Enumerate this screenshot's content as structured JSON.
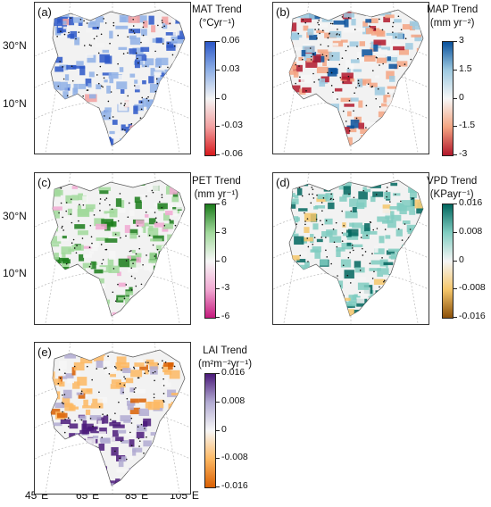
{
  "panels": [
    {
      "label": "(a)",
      "title_line1": "MAT Trend",
      "title_line2": "(°Cyr⁻¹)",
      "ticks": [
        "0.06",
        "0.03",
        "0",
        "-0.03",
        "-0.06"
      ],
      "colors": [
        "#2b57c8",
        "#8fb0e6",
        "#f4f4f4",
        "#f2a0a0",
        "#d7191c"
      ]
    },
    {
      "label": "(b)",
      "title_line1": "MAP Trend",
      "title_line2": "(mm yr⁻²)",
      "ticks": [
        "3",
        "1.5",
        "0",
        "-1.5",
        "-3"
      ],
      "colors": [
        "#08519c",
        "#9ecae1",
        "#f7f7f7",
        "#f4a582",
        "#b2182b"
      ]
    },
    {
      "label": "(c)",
      "title_line1": "PET Trend",
      "title_line2": "(mm yr⁻¹)",
      "ticks": [
        "6",
        "3",
        "0",
        "-3",
        "-6"
      ],
      "colors": [
        "#1b7c1b",
        "#a1d99b",
        "#f7f7f7",
        "#f1a9d2",
        "#c51b7d"
      ]
    },
    {
      "label": "(d)",
      "title_line1": "VPD Trend",
      "title_line2": "(KPayr⁻¹)",
      "ticks": [
        "0.016",
        "0.008",
        "0",
        "-0.008",
        "-0.016"
      ],
      "colors": [
        "#01665e",
        "#80cdc1",
        "#f5f5f5",
        "#f6c76b",
        "#8c510a"
      ]
    },
    {
      "label": "(e)",
      "title_line1": "LAI Trend",
      "title_line2": "(m²m⁻²yr⁻¹)",
      "ticks": [
        "0.016",
        "0.008",
        "0",
        "-0.008",
        "-0.016"
      ],
      "colors": [
        "#4b1a7a",
        "#b2abd2",
        "#f7f7f7",
        "#fdb863",
        "#d95f02"
      ]
    }
  ],
  "lat_labels": [
    "30°N",
    "10°N"
  ],
  "lon_labels": [
    "45°E",
    "65°E",
    "85°E",
    "105°E"
  ]
}
